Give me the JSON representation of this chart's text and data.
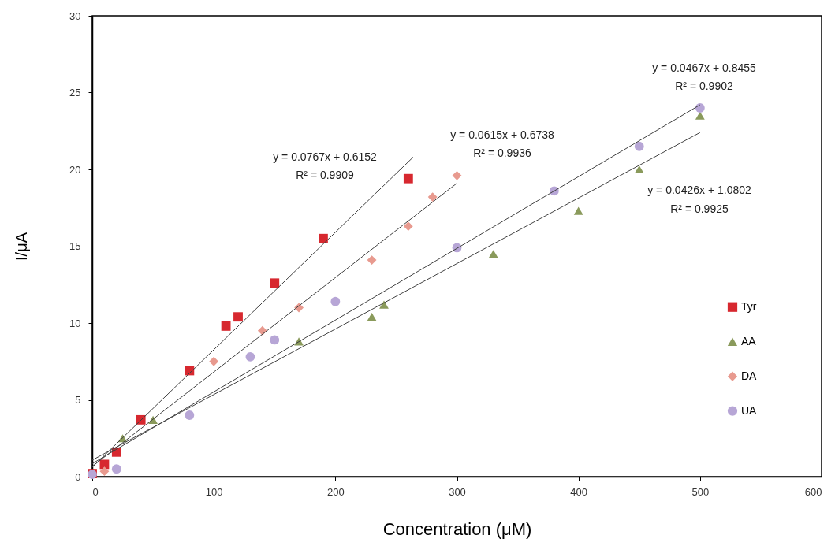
{
  "chart_data": {
    "type": "scatter",
    "xlabel": "Concentration (μM)",
    "ylabel": "I/μA",
    "xlim": [
      0,
      600
    ],
    "xticks": [
      0,
      100,
      200,
      300,
      400,
      500,
      600
    ],
    "ylim": [
      0,
      30
    ],
    "yticks": [
      0,
      5,
      10,
      15,
      20,
      25,
      30
    ],
    "grid": false,
    "legend": "right",
    "series": [
      {
        "name": "Tyr",
        "color": "#d7282f",
        "marker": "square",
        "x": [
          0,
          10,
          20,
          40,
          80,
          110,
          120,
          150,
          190,
          260
        ],
        "values": [
          0.2,
          0.8,
          1.6,
          3.7,
          6.9,
          9.8,
          10.4,
          12.6,
          15.5,
          19.4
        ]
      },
      {
        "name": "AA",
        "color": "#8a9a5b",
        "marker": "triangle",
        "x": [
          25,
          50,
          170,
          230,
          240,
          330,
          400,
          450,
          500
        ],
        "values": [
          2.5,
          3.7,
          8.8,
          10.4,
          11.2,
          14.5,
          17.3,
          20.0,
          23.5
        ]
      },
      {
        "name": "DA",
        "color": "#e89a8f",
        "marker": "diamond",
        "x": [
          10,
          100,
          140,
          170,
          230,
          260,
          280,
          300
        ],
        "values": [
          0.35,
          7.5,
          9.5,
          11.0,
          14.1,
          16.3,
          18.2,
          19.6
        ]
      },
      {
        "name": "UA",
        "color": "#b7a6d6",
        "marker": "circle",
        "x": [
          0,
          20,
          80,
          130,
          150,
          200,
          300,
          380,
          450,
          500
        ],
        "values": [
          0.15,
          0.5,
          4.0,
          7.8,
          8.9,
          11.4,
          14.9,
          18.6,
          21.5,
          24.0
        ]
      },
      {
        "type": "line",
        "color": "#404040",
        "marker": "none",
        "line_style": "solid",
        "x": [
          0,
          264
        ],
        "values": [
          0.62,
          20.8
        ]
      },
      {
        "type": "line",
        "color": "#404040",
        "marker": "none",
        "line_style": "solid",
        "x": [
          0,
          300
        ],
        "values": [
          0.67,
          19.1
        ]
      },
      {
        "type": "line",
        "color": "#404040",
        "marker": "none",
        "line_style": "solid",
        "x": [
          0,
          500
        ],
        "values": [
          0.85,
          24.2
        ]
      },
      {
        "type": "line",
        "color": "#404040",
        "marker": "none",
        "line_style": "solid",
        "x": [
          0,
          500
        ],
        "values": [
          1.08,
          22.4
        ]
      }
    ],
    "annotations": [
      "y = 0.0767x + 0.6152",
      "R² = 0.9909",
      "y = 0.0615x + 0.6738",
      "R² = 0.9936",
      "y = 0.0467x + 0.8455",
      "R² = 0.9902",
      "y = 0.0426x + 1.0802",
      "R² = 0.9925"
    ]
  }
}
